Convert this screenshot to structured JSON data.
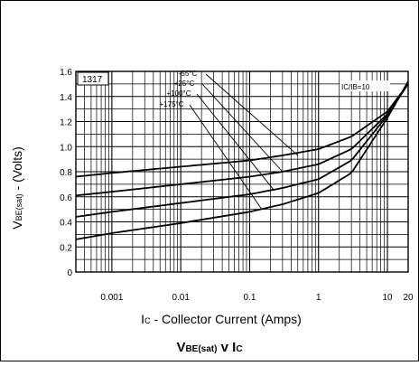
{
  "chart_data": {
    "type": "line",
    "title": "VBE(sat) v IC",
    "title_parts": [
      "V",
      "BE(sat)",
      " v I",
      "C"
    ],
    "xlabel": "IC - Collector Current (Amps)",
    "xlabel_parts": [
      "I",
      "C",
      " - Collector Current (Amps)"
    ],
    "ylabel": "VBE(sat) - (Volts)",
    "ylabel_parts": [
      "V",
      "BE(sat)",
      " - (Volts)"
    ],
    "x_scale": "log",
    "xlim": [
      0.0003,
      20
    ],
    "ylim": [
      0,
      1.6
    ],
    "x_ticks": [
      {
        "value": 0.001,
        "label": "0.001"
      },
      {
        "value": 0.01,
        "label": "0.01"
      },
      {
        "value": 0.1,
        "label": "0.1"
      },
      {
        "value": 1,
        "label": "1"
      },
      {
        "value": 10,
        "label": "10"
      },
      {
        "value": 20,
        "label": "20"
      }
    ],
    "y_ticks": [
      {
        "value": 0,
        "label": "0"
      },
      {
        "value": 0.2,
        "label": "0.2"
      },
      {
        "value": 0.4,
        "label": "0.4"
      },
      {
        "value": 0.6,
        "label": "0.6"
      },
      {
        "value": 0.8,
        "label": "0.8"
      },
      {
        "value": 1.0,
        "label": "1.0"
      },
      {
        "value": 1.2,
        "label": "1.2"
      },
      {
        "value": 1.4,
        "label": "1.4"
      },
      {
        "value": 1.6,
        "label": "1.6"
      }
    ],
    "grid": true,
    "part_number": "1317",
    "condition_label": "IC/IB=10",
    "series": [
      {
        "name": "-55°C",
        "x": [
          0.0003,
          0.001,
          0.01,
          0.1,
          0.3,
          1,
          3,
          10,
          20
        ],
        "y": [
          0.76,
          0.79,
          0.84,
          0.89,
          0.93,
          0.98,
          1.08,
          1.28,
          1.5
        ]
      },
      {
        "name": "+25°C",
        "x": [
          0.0003,
          0.001,
          0.01,
          0.1,
          0.3,
          1,
          3,
          10,
          20
        ],
        "y": [
          0.61,
          0.64,
          0.7,
          0.76,
          0.8,
          0.86,
          0.98,
          1.26,
          1.5
        ]
      },
      {
        "name": "+100°C",
        "x": [
          0.0003,
          0.001,
          0.01,
          0.1,
          0.3,
          1,
          3,
          10,
          20
        ],
        "y": [
          0.44,
          0.48,
          0.55,
          0.62,
          0.67,
          0.74,
          0.89,
          1.25,
          1.5
        ]
      },
      {
        "name": "+175°C",
        "x": [
          0.0003,
          0.001,
          0.01,
          0.1,
          0.3,
          1,
          3,
          10,
          20
        ],
        "y": [
          0.26,
          0.31,
          0.39,
          0.48,
          0.54,
          0.63,
          0.79,
          1.23,
          1.52
        ]
      }
    ],
    "legend_labels": [
      "-55°C",
      "+25°C",
      "+100°C",
      "+175°C"
    ]
  }
}
